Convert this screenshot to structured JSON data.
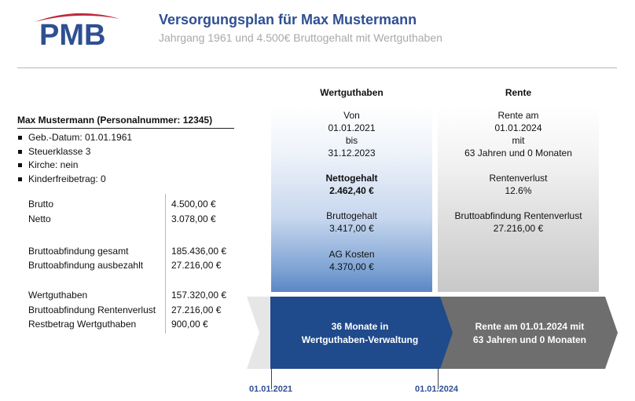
{
  "header": {
    "logo_text": "PMB",
    "title": "Versorgungsplan für Max Mustermann",
    "subtitle": "Jahrgang 1961 und 4.500€ Bruttogehalt mit Wertguthaben"
  },
  "person": {
    "heading": "Max Mustermann (Personalnummer: 12345)",
    "details": [
      "Geb.-Datum: 01.01.1961",
      "Steuerklasse 3",
      "Kirche: nein",
      "Kinderfreibetrag: 0"
    ]
  },
  "finance": {
    "brutto_label": "Brutto",
    "brutto_value": "4.500,00 €",
    "netto_label": "Netto",
    "netto_value": "3.078,00 €",
    "abf_gesamt_label": "Bruttoabfindung gesamt",
    "abf_gesamt_value": "185.436,00 €",
    "abf_ausbezahlt_label": "Bruttoabfindung ausbezahlt",
    "abf_ausbezahlt_value": "27.216,00 €",
    "wertguthaben_label": "Wertguthaben",
    "wertguthaben_value": "157.320,00 €",
    "abf_rentenverlust_label": "Bruttoabfindung Rentenverlust",
    "abf_rentenverlust_value": "27.216,00 €",
    "restbetrag_label": "Restbetrag Wertguthaben",
    "restbetrag_value": "900,00 €"
  },
  "wertguthaben": {
    "heading": "Wertguthaben",
    "von": "Von",
    "start": "01.01.2021",
    "bis": "bis",
    "end": "31.12.2023",
    "nettogehalt_label": "Nettogehalt",
    "nettogehalt_value": "2.462,40 €",
    "bruttogehalt_label": "Bruttogehalt",
    "bruttogehalt_value": "3.417,00 €",
    "ag_kosten_label": "AG Kosten",
    "ag_kosten_value": "4.370,00 €"
  },
  "rente": {
    "heading": "Rente",
    "rente_am": "Rente am",
    "date": "01.01.2024",
    "mit": "mit",
    "age": "63 Jahren und 0 Monaten",
    "rentenverlust_label": "Rentenverlust",
    "rentenverlust_value": "12.6%",
    "abfindung_label": "Bruttoabfindung Rentenverlust",
    "abfindung_value": "27.216,00 €"
  },
  "timeline": {
    "phase1_line1": "36 Monate in",
    "phase1_line2": "Wertguthaben-Verwaltung",
    "phase2_line1": "Rente am 01.01.2024 mit",
    "phase2_line2": "63 Jahren und 0 Monaten",
    "date1": "01.01.2021",
    "date2": "01.01.2024"
  },
  "colors": {
    "brand_blue": "#2f4f92",
    "arrow_blue": "#1f4a8c",
    "arrow_gray": "#6e6e6e",
    "logo_swoosh": "#c0283c"
  }
}
